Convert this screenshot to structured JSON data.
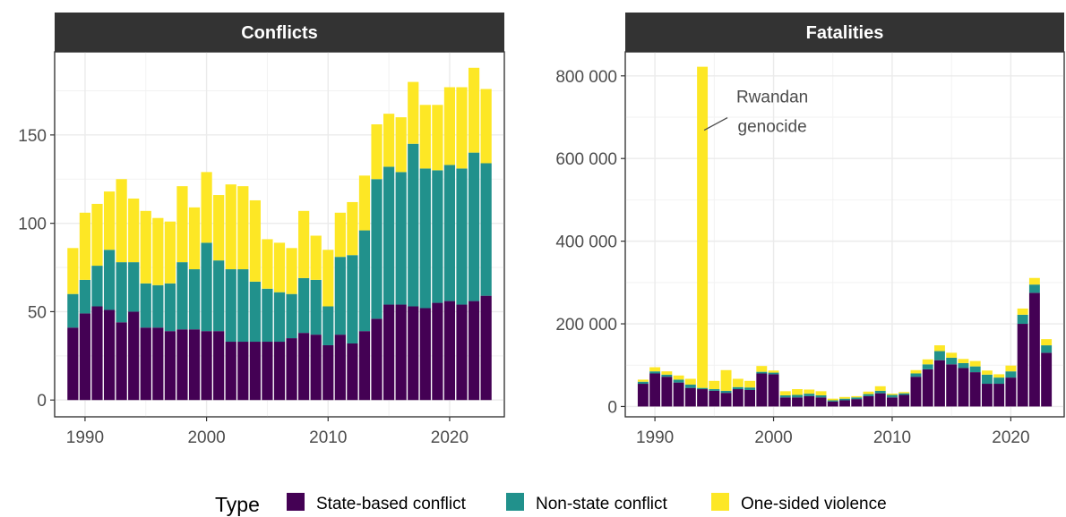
{
  "legend": {
    "title": "Type",
    "items": [
      {
        "label": "State-based conflict",
        "color": "#440154"
      },
      {
        "label": "Non-state conflict",
        "color": "#21918c"
      },
      {
        "label": "One-sided violence",
        "color": "#fde725"
      }
    ]
  },
  "annotation": {
    "line1": "Rwandan",
    "line2": "genocide",
    "x": 1994,
    "y": 820000
  },
  "chart_data": [
    {
      "type": "bar",
      "stacked": true,
      "title": "Conflicts",
      "x": [
        1989,
        1990,
        1991,
        1992,
        1993,
        1994,
        1995,
        1996,
        1997,
        1998,
        1999,
        2000,
        2001,
        2002,
        2003,
        2004,
        2005,
        2006,
        2007,
        2008,
        2009,
        2010,
        2011,
        2012,
        2013,
        2014,
        2015,
        2016,
        2017,
        2018,
        2019,
        2020,
        2021,
        2022,
        2023
      ],
      "series": [
        {
          "name": "State-based conflict",
          "values": [
            41,
            49,
            53,
            51,
            44,
            50,
            41,
            41,
            39,
            40,
            40,
            39,
            39,
            33,
            33,
            33,
            33,
            33,
            35,
            38,
            37,
            31,
            37,
            32,
            39,
            46,
            54,
            54,
            53,
            52,
            55,
            56,
            54,
            56,
            59
          ]
        },
        {
          "name": "Non-state conflict",
          "values": [
            19,
            19,
            23,
            34,
            34,
            28,
            25,
            24,
            27,
            38,
            34,
            50,
            40,
            41,
            41,
            34,
            30,
            28,
            25,
            31,
            31,
            22,
            44,
            50,
            57,
            79,
            78,
            75,
            92,
            79,
            75,
            77,
            77,
            84,
            75
          ]
        },
        {
          "name": "One-sided violence",
          "values": [
            26,
            38,
            35,
            33,
            47,
            36,
            41,
            38,
            35,
            43,
            35,
            40,
            37,
            48,
            47,
            46,
            28,
            28,
            26,
            38,
            25,
            32,
            25,
            30,
            31,
            31,
            30,
            31,
            35,
            36,
            37,
            44,
            46,
            48,
            42
          ]
        }
      ],
      "xticks": [
        1990,
        2000,
        2010,
        2020
      ],
      "xlim": [
        1987.5,
        2024.5
      ],
      "yticks": [
        0,
        50,
        100,
        150
      ],
      "ytick_labels": [
        "0",
        "50",
        "100",
        "150"
      ],
      "ylim": [
        -9.5,
        197
      ],
      "grid": true
    },
    {
      "type": "bar",
      "stacked": true,
      "title": "Fatalities",
      "x": [
        1989,
        1990,
        1991,
        1992,
        1993,
        1994,
        1995,
        1996,
        1997,
        1998,
        1999,
        2000,
        2001,
        2002,
        2003,
        2004,
        2005,
        2006,
        2007,
        2008,
        2009,
        2010,
        2011,
        2012,
        2013,
        2014,
        2015,
        2016,
        2017,
        2018,
        2019,
        2020,
        2021,
        2022,
        2023
      ],
      "series": [
        {
          "name": "State-based conflict",
          "values": [
            55000,
            80000,
            72000,
            58000,
            45000,
            42000,
            38000,
            33000,
            42000,
            40000,
            80000,
            78000,
            22000,
            22000,
            25000,
            22000,
            12000,
            15000,
            18000,
            25000,
            32000,
            22000,
            28000,
            72000,
            90000,
            112000,
            102000,
            93000,
            83000,
            55000,
            55000,
            70000,
            200000,
            275000,
            130000
          ]
        },
        {
          "name": "Non-state conflict",
          "values": [
            5000,
            5000,
            5000,
            7000,
            8000,
            3000,
            4000,
            5000,
            5000,
            6000,
            4000,
            4000,
            5000,
            6000,
            6000,
            5000,
            3000,
            4000,
            4000,
            5000,
            6000,
            6000,
            4000,
            8000,
            12000,
            22000,
            16000,
            12000,
            14000,
            22000,
            15000,
            15000,
            22000,
            20000,
            18000
          ]
        },
        {
          "name": "One-sided violence",
          "values": [
            5000,
            10000,
            8000,
            10000,
            14000,
            777000,
            20000,
            50000,
            20000,
            16000,
            14000,
            5000,
            10000,
            14000,
            10000,
            10000,
            4000,
            4000,
            3000,
            6000,
            11000,
            3000,
            3000,
            8000,
            12000,
            14000,
            12000,
            10000,
            13000,
            10000,
            8000,
            14000,
            15000,
            16000,
            15000
          ]
        }
      ],
      "xticks": [
        1990,
        2000,
        2010,
        2020
      ],
      "xlim": [
        1987.5,
        2024.5
      ],
      "yticks": [
        0,
        200000,
        400000,
        600000,
        800000
      ],
      "ytick_labels": [
        "0",
        "200 000",
        "400 000",
        "600 000",
        "800 000"
      ],
      "ylim": [
        -25000,
        858000
      ],
      "grid": true
    }
  ]
}
